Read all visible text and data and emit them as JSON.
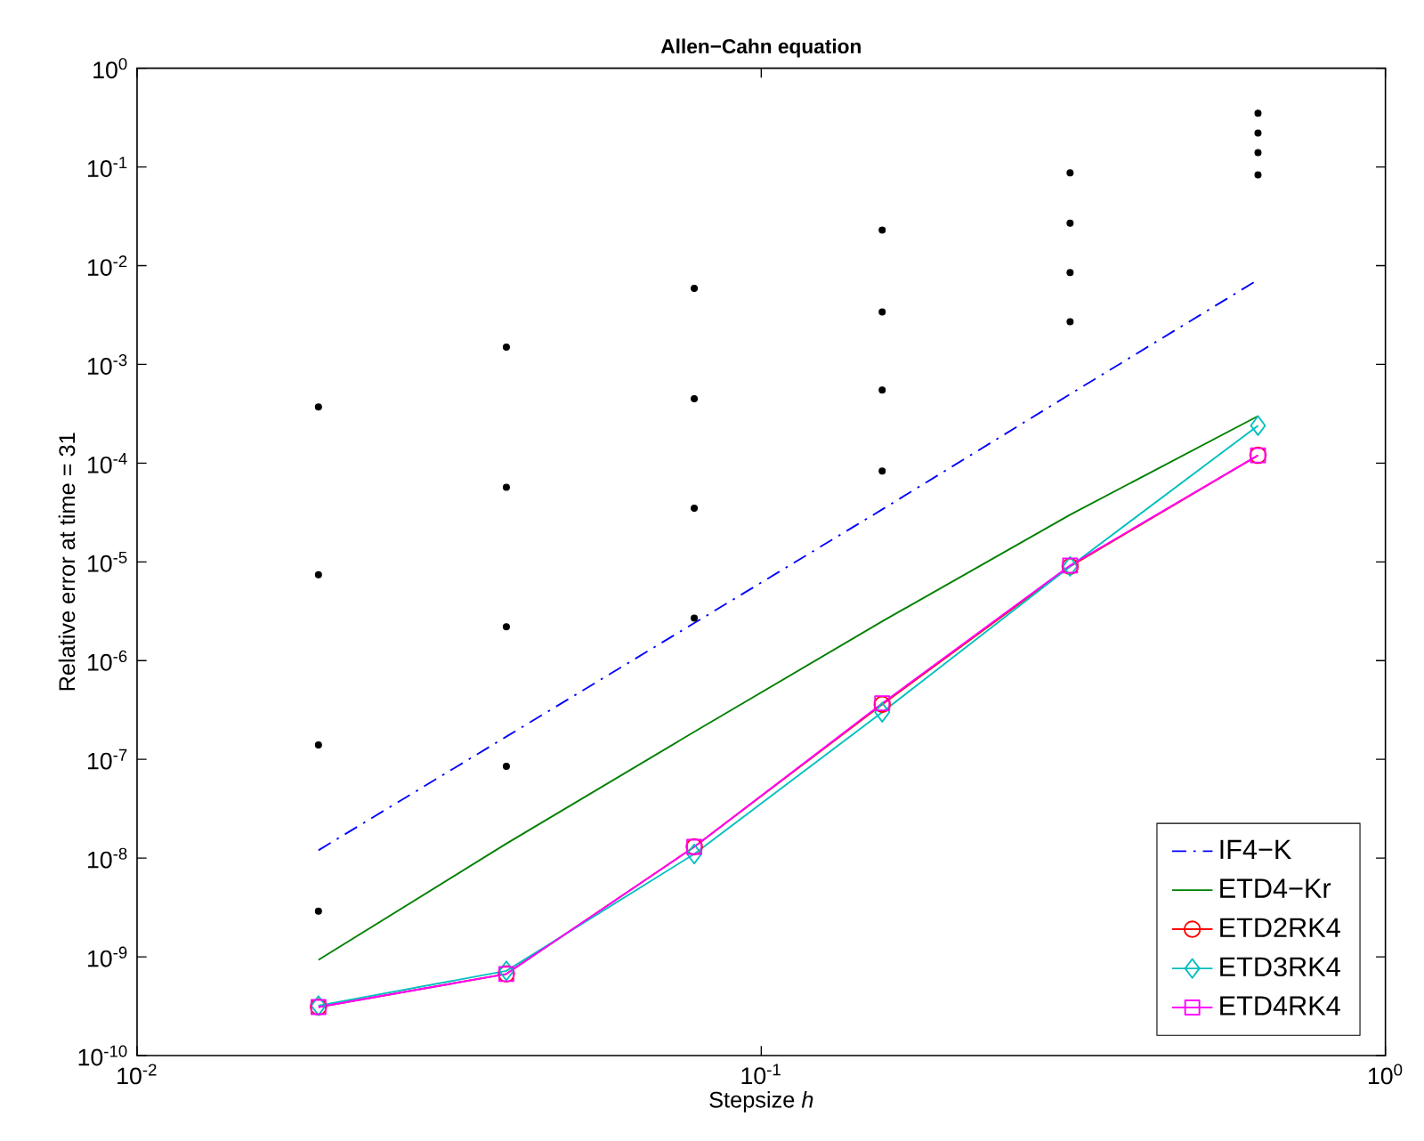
{
  "chart_data": {
    "type": "line",
    "title": "Allen−Cahn equation",
    "xlabel": "Stepsize  *h*",
    "ylabel": "Relative error at time = 31",
    "log": "xy",
    "grid": false,
    "legend": "bottom right",
    "x": [
      0.01953125,
      0.0390625,
      0.078125,
      0.15625,
      0.3125,
      0.625
    ],
    "xlim": [
      0.01,
      1
    ],
    "ylim": [
      1e-10,
      1
    ],
    "xticks": [
      {
        "value": 0.01,
        "label": "10$^{-2}$"
      },
      {
        "value": 0.1,
        "label": "10$^{-1}$"
      },
      {
        "value": 1,
        "label": "10$^{0}$"
      }
    ],
    "yticks": [
      {
        "value": 1e-10,
        "label": "10$^{-10}$"
      },
      {
        "value": 1e-09,
        "label": "10$^{-9}$"
      },
      {
        "value": 1e-08,
        "label": "10$^{-8}$"
      },
      {
        "value": 1e-07,
        "label": "10$^{-7}$"
      },
      {
        "value": 1e-06,
        "label": "10$^{-6}$"
      },
      {
        "value": 1e-05,
        "label": "10$^{-5}$"
      },
      {
        "value": 0.0001,
        "label": "10$^{-4}$"
      },
      {
        "value": 0.001,
        "label": "10$^{-3}$"
      },
      {
        "value": 0.01,
        "label": "10$^{-2}$"
      },
      {
        "value": 0.1,
        "label": "10$^{-1}$"
      },
      {
        "value": 1,
        "label": "10$^{0}$"
      }
    ],
    "series": [
      {
        "type": "scatter",
        "color": "#000000",
        "marker": "circle",
        "x": [
          0.01953125,
          0.01953125,
          0.01953125,
          0.01953125,
          0.0390625,
          0.0390625,
          0.0390625,
          0.0390625,
          0.078125,
          0.078125,
          0.078125,
          0.078125,
          0.15625,
          0.15625,
          0.15625,
          0.15625,
          0.3125,
          0.3125,
          0.3125,
          0.3125,
          0.625,
          0.625,
          0.625,
          0.625
        ],
        "values": [
          0.00037,
          7.4e-06,
          1.4e-07,
          2.9e-09,
          0.0015,
          5.7e-05,
          2.2e-06,
          8.5e-08,
          0.0059,
          0.00045,
          3.5e-05,
          2.7e-06,
          0.023,
          0.0034,
          0.00055,
          8.3e-05,
          0.087,
          0.027,
          0.0085,
          0.0027,
          0.35,
          0.22,
          0.14,
          0.083
        ]
      },
      {
        "name": "IF4−K",
        "color": "#0000ff",
        "line_style": "dashdot",
        "marker": "none",
        "values": [
          1.2e-08,
          1.7e-07,
          2.4e-06,
          3.4e-05,
          0.0005,
          0.0072
        ]
      },
      {
        "name": "ETD4−Kr",
        "color": "#008000",
        "line_style": "solid",
        "marker": "none",
        "values": [
          9.3e-10,
          1.4e-08,
          1.9e-07,
          2.5e-06,
          3e-05,
          0.0003
        ]
      },
      {
        "name": "ETD2RK4",
        "color": "#ff0000",
        "line_style": "solid",
        "marker": "circle",
        "values": [
          3.1e-10,
          6.7e-10,
          1.3e-08,
          3.6e-07,
          9e-06,
          0.00012
        ]
      },
      {
        "name": "ETD3RK4",
        "color": "#00bfbf",
        "line_style": "solid",
        "marker": "diamond",
        "values": [
          3.2e-10,
          7.2e-10,
          1.1e-08,
          3e-07,
          9e-06,
          0.00024
        ]
      },
      {
        "name": "ETD4RK4",
        "color": "#ff00ff",
        "line_style": "solid",
        "marker": "square",
        "values": [
          3.1e-10,
          6.7e-10,
          1.3e-08,
          3.7e-07,
          9.2e-06,
          0.00012
        ]
      }
    ]
  }
}
